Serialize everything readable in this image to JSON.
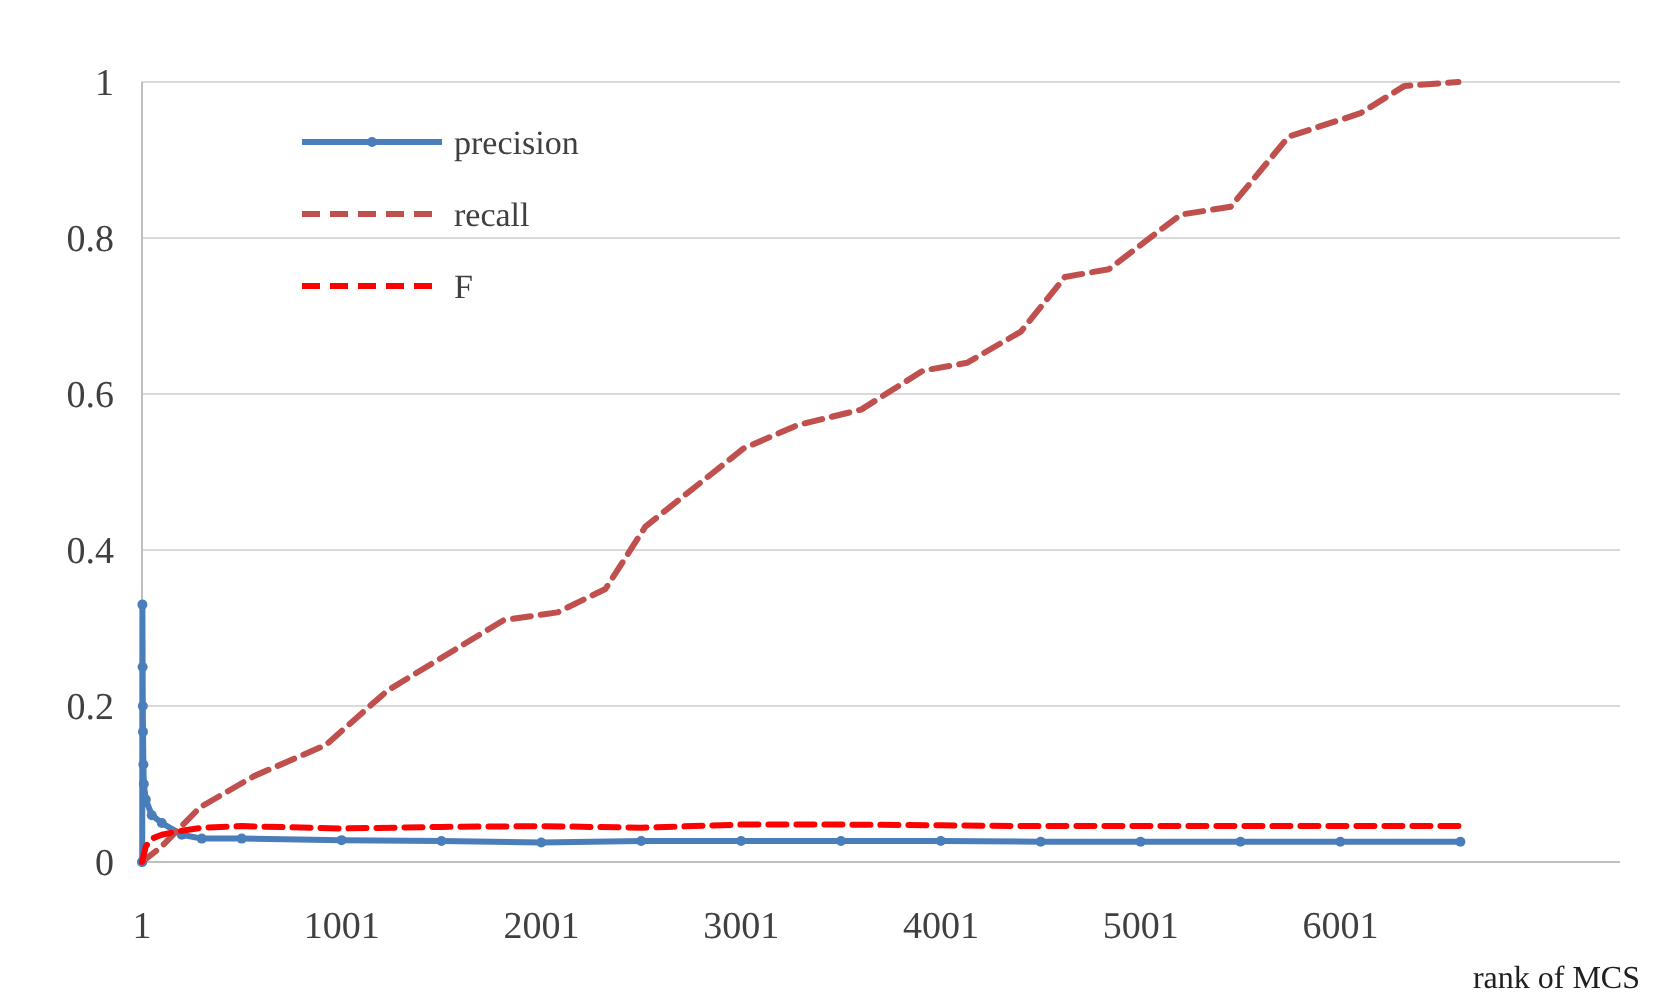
{
  "chart_data": {
    "type": "line",
    "xlabel": "rank of  MCS",
    "xlim": [
      1,
      7400
    ],
    "ylim": [
      0,
      1
    ],
    "xticks": [
      1,
      1001,
      2001,
      3001,
      4001,
      5001,
      6001
    ],
    "yticks": [
      0,
      0.2,
      0.4,
      0.6,
      0.8,
      1
    ],
    "grid": "y",
    "legend": "top left",
    "series": [
      {
        "name": "precision",
        "color": "#4a7ebb",
        "marker": "circle",
        "line_style": "solid",
        "x": [
          1,
          2,
          3,
          4,
          5,
          6,
          8,
          10,
          20,
          50,
          100,
          200,
          300,
          500,
          1000,
          1500,
          2000,
          2500,
          3000,
          3500,
          4000,
          4500,
          5000,
          5500,
          6000,
          6601
        ],
        "values": [
          0,
          0,
          0.33,
          0.25,
          0.2,
          0.167,
          0.125,
          0.1,
          0.08,
          0.06,
          0.05,
          0.035,
          0.03,
          0.03,
          0.028,
          0.027,
          0.025,
          0.027,
          0.027,
          0.027,
          0.027,
          0.026,
          0.026,
          0.026,
          0.026,
          0.026
        ]
      },
      {
        "name": "recall",
        "color": "#c0504d",
        "marker": "none",
        "line_style": "dashed",
        "x": [
          1,
          100,
          291,
          561,
          921,
          1231,
          1811,
          2081,
          2321,
          2521,
          3011,
          3281,
          3601,
          3911,
          4131,
          4401,
          4621,
          4841,
          5201,
          5451,
          5741,
          6101,
          6321,
          6591
        ],
        "values": [
          0,
          0.02,
          0.07,
          0.11,
          0.15,
          0.22,
          0.31,
          0.32,
          0.35,
          0.43,
          0.53,
          0.56,
          0.58,
          0.63,
          0.64,
          0.68,
          0.75,
          0.76,
          0.83,
          0.84,
          0.93,
          0.96,
          0.995,
          1
        ]
      },
      {
        "name": "F",
        "color": "#ff0000",
        "marker": "none",
        "line_style": "dashed",
        "x": [
          1,
          20,
          50,
          100,
          200,
          300,
          500,
          1000,
          1500,
          2000,
          2500,
          3000,
          3500,
          4000,
          4500,
          5000,
          5500,
          6000,
          6601
        ],
        "values": [
          0,
          0.02,
          0.03,
          0.035,
          0.04,
          0.044,
          0.046,
          0.043,
          0.045,
          0.046,
          0.044,
          0.048,
          0.048,
          0.047,
          0.046,
          0.046,
          0.046,
          0.046,
          0.046
        ]
      }
    ]
  }
}
